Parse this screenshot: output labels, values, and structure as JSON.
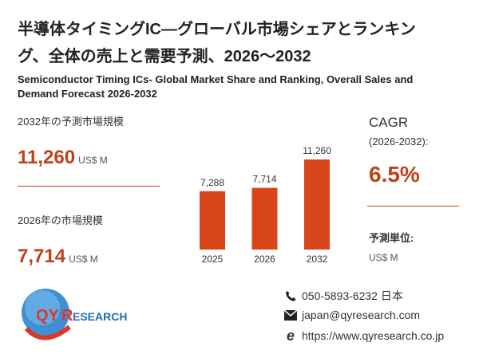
{
  "header": {
    "title_line1": "半導体タイミングIC―グローバル市場シェアとランキン",
    "title_line2": "グ、全体の売上と需要予測、2026～2032",
    "subtitle_line1": "Semiconductor Timing ICs- Global Market Share and Ranking, Overall Sales and",
    "subtitle_line2": "Demand Forecast 2026-2032"
  },
  "left": {
    "forecast_label": "2032年の予測市場規模",
    "forecast_value": "11,260",
    "forecast_unit": "US$ M",
    "current_label": "2026年の市場規模",
    "current_value": "7,714",
    "current_unit": "US$ M"
  },
  "right": {
    "cagr_label": "CAGR",
    "cagr_period": "(2026-2032):",
    "cagr_value": "6.5%",
    "unit_label": "予測単位:",
    "unit_value": "US$ M"
  },
  "chart_data": {
    "type": "bar",
    "categories": [
      "2025",
      "2026",
      "2032"
    ],
    "values": [
      7288,
      7714,
      11260
    ],
    "value_labels": [
      "7,288",
      "7,714",
      "11,260"
    ],
    "bar_color": "#d9461b",
    "grid": false
  },
  "contact": {
    "phone": "050-5893-6232 日本",
    "email": "japan@qyresearch.com",
    "website": "https://www.qyresearch.co.jp"
  },
  "logo": {
    "text_qy": "QY",
    "text_r": "R",
    "text_rest": "ESEARCH"
  },
  "colors": {
    "accent": "#c0401a",
    "logo_blue": "#1e6fb5"
  }
}
